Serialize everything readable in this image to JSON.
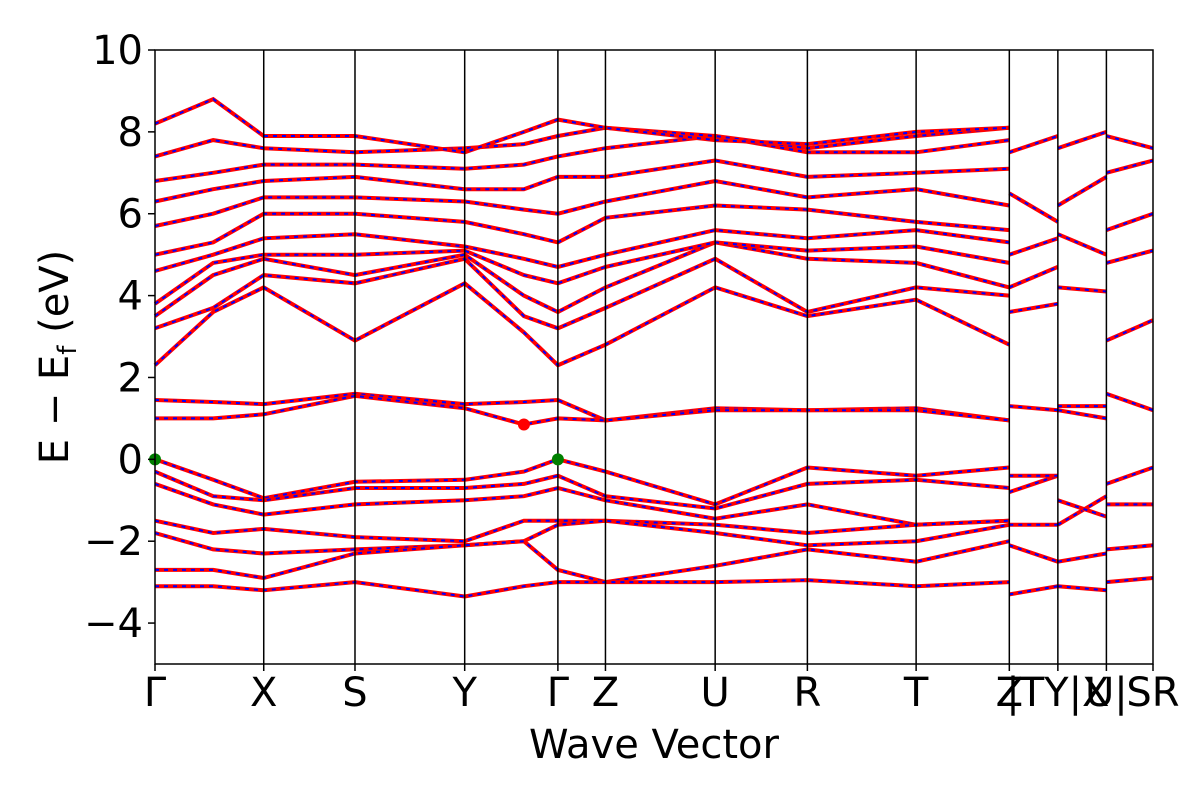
{
  "chart_data": {
    "type": "line",
    "xlabel": "Wave Vector",
    "ylabel": {
      "main": "E − E",
      "sub": "f",
      "unit": " (eV)"
    },
    "ylim": [
      -5,
      10
    ],
    "yticks": [
      -4,
      -2,
      0,
      2,
      4,
      6,
      8,
      10
    ],
    "ytick_labels": [
      "−4",
      "−2",
      "0",
      "2",
      "4",
      "6",
      "8",
      "10"
    ],
    "xlim": [
      0,
      10.28
    ],
    "grid": false,
    "legend": "none",
    "kpoints": [
      {
        "x": 0.0,
        "label": "Γ"
      },
      {
        "x": 1.12,
        "label": "X"
      },
      {
        "x": 2.06,
        "label": "S"
      },
      {
        "x": 3.19,
        "label": "Y"
      },
      {
        "x": 4.15,
        "label": "Γ"
      },
      {
        "x": 4.64,
        "label": "Z"
      },
      {
        "x": 5.77,
        "label": "U"
      },
      {
        "x": 6.72,
        "label": "R"
      },
      {
        "x": 7.84,
        "label": "T"
      },
      {
        "x": 8.8,
        "label": "Z"
      },
      {
        "x": 9.3,
        "label": "|TY|X"
      },
      {
        "x": 9.8,
        "label": "U|"
      },
      {
        "x": 10.28,
        "label": "SR"
      }
    ],
    "band_style": {
      "primary": "#ff0000",
      "overlay": "#0000ff"
    },
    "conduction_bands": [
      {
        "x": [
          0,
          0.6,
          1.12,
          2.06,
          3.19,
          3.8,
          4.15,
          4.64,
          5.77,
          6.72,
          7.84,
          8.8
        ],
        "y": [
          2.3,
          3.6,
          4.2,
          2.9,
          4.3,
          3.1,
          2.3,
          2.8,
          4.2,
          3.5,
          3.9,
          2.8
        ]
      },
      {
        "x": [
          0,
          0.6,
          1.12,
          2.06,
          3.19,
          3.8,
          4.15,
          4.64,
          5.77,
          6.72,
          7.84,
          8.8
        ],
        "y": [
          3.2,
          3.7,
          4.5,
          4.3,
          4.9,
          3.5,
          3.2,
          3.7,
          4.9,
          3.6,
          4.2,
          4.0
        ]
      },
      {
        "x": [
          0,
          0.6,
          1.12,
          2.06,
          3.19,
          3.8,
          4.15,
          4.64,
          5.77,
          6.72,
          7.84,
          8.8
        ],
        "y": [
          3.5,
          4.5,
          4.9,
          4.5,
          5.0,
          4.0,
          3.6,
          4.2,
          5.3,
          4.9,
          4.8,
          4.2
        ]
      },
      {
        "x": [
          0,
          0.6,
          1.12,
          2.06,
          3.19,
          3.8,
          4.15,
          4.64,
          5.77,
          6.72,
          7.84,
          8.8
        ],
        "y": [
          3.8,
          4.8,
          5.0,
          5.0,
          5.1,
          4.5,
          4.3,
          4.7,
          5.3,
          5.1,
          5.2,
          4.8
        ]
      },
      {
        "x": [
          0,
          0.6,
          1.12,
          2.06,
          3.19,
          3.8,
          4.15,
          4.64,
          5.77,
          6.72,
          7.84,
          8.8
        ],
        "y": [
          4.6,
          5.0,
          5.4,
          5.5,
          5.2,
          4.9,
          4.7,
          5.0,
          5.6,
          5.4,
          5.6,
          5.3
        ]
      },
      {
        "x": [
          0,
          0.6,
          1.12,
          2.06,
          3.19,
          3.8,
          4.15,
          4.64,
          5.77,
          6.72,
          7.84,
          8.8
        ],
        "y": [
          5.0,
          5.3,
          6.0,
          6.0,
          5.8,
          5.5,
          5.3,
          5.9,
          6.2,
          6.1,
          5.8,
          5.6
        ]
      },
      {
        "x": [
          0,
          0.6,
          1.12,
          2.06,
          3.19,
          3.8,
          4.15,
          4.64,
          5.77,
          6.72,
          7.84,
          8.8
        ],
        "y": [
          5.7,
          6.0,
          6.4,
          6.4,
          6.3,
          6.1,
          6.0,
          6.3,
          6.8,
          6.4,
          6.6,
          6.2
        ]
      },
      {
        "x": [
          0,
          0.6,
          1.12,
          2.06,
          3.19,
          3.8,
          4.15,
          4.64,
          5.77,
          6.72,
          7.84,
          8.8
        ],
        "y": [
          6.3,
          6.6,
          6.8,
          6.9,
          6.6,
          6.6,
          6.9,
          6.9,
          7.3,
          6.9,
          7.0,
          7.1
        ]
      },
      {
        "x": [
          0,
          0.6,
          1.12,
          2.06,
          3.19,
          3.8,
          4.15,
          4.64,
          5.77,
          6.72,
          7.84,
          8.8
        ],
        "y": [
          6.8,
          7.0,
          7.2,
          7.2,
          7.1,
          7.2,
          7.4,
          7.6,
          7.9,
          7.5,
          7.5,
          7.8
        ]
      },
      {
        "x": [
          0,
          0.6,
          1.12,
          2.06,
          3.19,
          3.8,
          4.15,
          4.64,
          5.77,
          6.72,
          7.84,
          8.8
        ],
        "y": [
          7.4,
          7.8,
          7.6,
          7.5,
          7.6,
          7.7,
          7.9,
          8.1,
          7.9,
          7.6,
          7.9,
          8.1
        ]
      },
      {
        "x": [
          0,
          0.6,
          1.12,
          2.06,
          3.19,
          3.8,
          4.15,
          4.64,
          5.77,
          6.72,
          7.84,
          8.8
        ],
        "y": [
          8.2,
          8.8,
          7.9,
          7.9,
          7.5,
          8.0,
          8.3,
          8.1,
          7.8,
          7.7,
          8.0,
          8.1
        ]
      }
    ],
    "valence_bands": [
      {
        "x": [
          0,
          0.6,
          1.12,
          2.06,
          3.19,
          3.8,
          4.15,
          4.64,
          5.77,
          6.72,
          7.84,
          8.8
        ],
        "y": [
          1.45,
          1.4,
          1.35,
          1.6,
          1.35,
          1.4,
          1.45,
          0.95,
          1.25,
          1.2,
          1.25,
          0.95
        ]
      },
      {
        "x": [
          0,
          0.6,
          1.12,
          2.06,
          3.19,
          3.8,
          4.15,
          4.64,
          5.77,
          6.72,
          7.84,
          8.8
        ],
        "y": [
          1.0,
          1.0,
          1.1,
          1.55,
          1.25,
          0.85,
          1.0,
          0.95,
          1.2,
          1.2,
          1.2,
          0.95
        ]
      },
      {
        "x": [
          0,
          0.6,
          1.12,
          2.06,
          3.19,
          3.8,
          4.15,
          4.64,
          5.77,
          6.72,
          7.84,
          8.8
        ],
        "y": [
          0.0,
          -0.5,
          -0.95,
          -0.55,
          -0.5,
          -0.3,
          0.0,
          -0.3,
          -1.1,
          -0.2,
          -0.4,
          -0.2
        ]
      },
      {
        "x": [
          0,
          0.6,
          1.12,
          2.06,
          3.19,
          3.8,
          4.15,
          4.64,
          5.77,
          6.72,
          7.84,
          8.8
        ],
        "y": [
          -0.3,
          -0.9,
          -1.0,
          -0.7,
          -0.7,
          -0.6,
          -0.4,
          -0.9,
          -1.2,
          -0.6,
          -0.5,
          -0.7
        ]
      },
      {
        "x": [
          0,
          0.6,
          1.12,
          2.06,
          3.19,
          3.8,
          4.15,
          4.64,
          5.77,
          6.72,
          7.84,
          8.8
        ],
        "y": [
          -0.6,
          -1.1,
          -1.35,
          -1.1,
          -1.0,
          -0.9,
          -0.7,
          -1.0,
          -1.45,
          -1.1,
          -1.6,
          -1.5
        ]
      },
      {
        "x": [
          0,
          0.6,
          1.12,
          2.06,
          3.19,
          3.8,
          4.15,
          4.64,
          5.77,
          6.72,
          7.84,
          8.8
        ],
        "y": [
          -1.5,
          -1.8,
          -1.7,
          -1.9,
          -2.0,
          -1.5,
          -1.5,
          -1.5,
          -1.6,
          -1.8,
          -1.6,
          -1.5
        ]
      },
      {
        "x": [
          0,
          0.6,
          1.12,
          2.06,
          3.19,
          3.8,
          4.15,
          4.64,
          5.77,
          6.72,
          7.84,
          8.8
        ],
        "y": [
          -1.8,
          -2.2,
          -2.3,
          -2.2,
          -2.1,
          -2.0,
          -1.6,
          -1.5,
          -1.8,
          -2.1,
          -2.0,
          -1.6
        ]
      },
      {
        "x": [
          0,
          0.6,
          1.12,
          2.06,
          3.19,
          3.8,
          4.15,
          4.64,
          5.77,
          6.72,
          7.84,
          8.8
        ],
        "y": [
          -2.7,
          -2.7,
          -2.9,
          -2.3,
          -2.1,
          -2.0,
          -2.7,
          -3.0,
          -2.6,
          -2.2,
          -2.5,
          -2.0
        ]
      },
      {
        "x": [
          0,
          0.6,
          1.12,
          2.06,
          3.19,
          3.8,
          4.15,
          4.64,
          5.77,
          6.72,
          7.84,
          8.8
        ],
        "y": [
          -3.1,
          -3.1,
          -3.2,
          -3.0,
          -3.35,
          -3.1,
          -3.0,
          -3.0,
          -3.0,
          -2.95,
          -3.1,
          -3.0
        ]
      }
    ],
    "short_segments": [
      {
        "x": [
          8.8,
          9.3
        ],
        "y": [
          -3.3,
          -3.1
        ]
      },
      {
        "x": [
          8.8,
          9.3
        ],
        "y": [
          -2.1,
          -2.5
        ]
      },
      {
        "x": [
          8.8,
          9.3
        ],
        "y": [
          -1.6,
          -1.6
        ]
      },
      {
        "x": [
          8.8,
          9.3
        ],
        "y": [
          -0.8,
          -0.4
        ]
      },
      {
        "x": [
          8.8,
          9.3
        ],
        "y": [
          -0.4,
          -0.4
        ]
      },
      {
        "x": [
          8.8,
          9.3
        ],
        "y": [
          1.3,
          1.2
        ]
      },
      {
        "x": [
          8.8,
          9.3
        ],
        "y": [
          3.6,
          3.8
        ]
      },
      {
        "x": [
          8.8,
          9.3
        ],
        "y": [
          4.2,
          4.7
        ]
      },
      {
        "x": [
          8.8,
          9.3
        ],
        "y": [
          5.0,
          5.4
        ]
      },
      {
        "x": [
          8.8,
          9.3
        ],
        "y": [
          6.5,
          5.8
        ]
      },
      {
        "x": [
          8.8,
          9.3
        ],
        "y": [
          7.5,
          7.9
        ]
      },
      {
        "x": [
          9.3,
          9.8
        ],
        "y": [
          -3.1,
          -3.2
        ]
      },
      {
        "x": [
          9.3,
          9.8
        ],
        "y": [
          -2.5,
          -2.3
        ]
      },
      {
        "x": [
          9.3,
          9.8
        ],
        "y": [
          -1.6,
          -0.9
        ]
      },
      {
        "x": [
          9.3,
          9.8
        ],
        "y": [
          -1.0,
          -1.4
        ]
      },
      {
        "x": [
          9.3,
          9.8
        ],
        "y": [
          1.3,
          1.3
        ]
      },
      {
        "x": [
          9.3,
          9.8
        ],
        "y": [
          1.2,
          1.0
        ]
      },
      {
        "x": [
          9.3,
          9.8
        ],
        "y": [
          4.2,
          4.1
        ]
      },
      {
        "x": [
          9.3,
          9.8
        ],
        "y": [
          5.5,
          5.0
        ]
      },
      {
        "x": [
          9.3,
          9.8
        ],
        "y": [
          6.2,
          6.9
        ]
      },
      {
        "x": [
          9.3,
          9.8
        ],
        "y": [
          7.6,
          8.0
        ]
      },
      {
        "x": [
          9.8,
          10.28
        ],
        "y": [
          -3.0,
          -2.9
        ]
      },
      {
        "x": [
          9.8,
          10.28
        ],
        "y": [
          -2.2,
          -2.1
        ]
      },
      {
        "x": [
          9.8,
          10.28
        ],
        "y": [
          -1.1,
          -1.1
        ]
      },
      {
        "x": [
          9.8,
          10.28
        ],
        "y": [
          -0.6,
          -0.2
        ]
      },
      {
        "x": [
          9.8,
          10.28
        ],
        "y": [
          1.6,
          1.2
        ]
      },
      {
        "x": [
          9.8,
          10.28
        ],
        "y": [
          2.9,
          3.4
        ]
      },
      {
        "x": [
          9.8,
          10.28
        ],
        "y": [
          4.8,
          5.1
        ]
      },
      {
        "x": [
          9.8,
          10.28
        ],
        "y": [
          5.6,
          6.0
        ]
      },
      {
        "x": [
          9.8,
          10.28
        ],
        "y": [
          7.0,
          7.3
        ]
      },
      {
        "x": [
          9.8,
          10.28
        ],
        "y": [
          7.9,
          7.6
        ]
      }
    ],
    "markers": [
      {
        "x": 0.0,
        "y": 0.0,
        "color": "#008000",
        "name": "vbm-marker-gamma"
      },
      {
        "x": 4.15,
        "y": 0.0,
        "color": "#008000",
        "name": "vbm-marker-gamma-2"
      },
      {
        "x": 3.8,
        "y": 0.85,
        "color": "#ff0000",
        "name": "cbm-marker"
      }
    ]
  }
}
